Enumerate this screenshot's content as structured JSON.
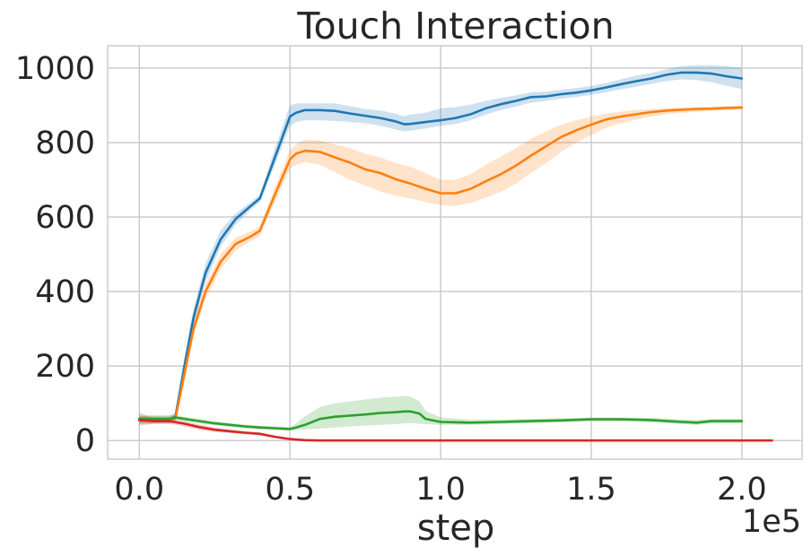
{
  "chart_data": {
    "type": "line",
    "title": "Touch Interaction",
    "xlabel": "step",
    "ylabel": "",
    "x_offset_label": "1e5",
    "xlim": [
      -0.105,
      2.2
    ],
    "ylim": [
      -50,
      1060
    ],
    "x_ticks": [
      0.0,
      0.5,
      1.0,
      1.5,
      2.0
    ],
    "x_tick_labels": [
      "0.0",
      "0.5",
      "1.0",
      "1.5",
      "2.0"
    ],
    "y_ticks": [
      0,
      200,
      400,
      600,
      800,
      1000
    ],
    "y_tick_labels": [
      "0",
      "200",
      "400",
      "600",
      "800",
      "1000"
    ],
    "grid": true,
    "series": [
      {
        "color": "#1f77b4",
        "x": [
          0,
          0.1,
          0.12,
          0.15,
          0.18,
          0.22,
          0.27,
          0.32,
          0.37,
          0.4,
          0.45,
          0.5,
          0.52,
          0.55,
          0.6,
          0.65,
          0.7,
          0.75,
          0.8,
          0.85,
          0.88,
          0.9,
          0.95,
          1.0,
          1.05,
          1.1,
          1.15,
          1.2,
          1.25,
          1.3,
          1.35,
          1.4,
          1.45,
          1.5,
          1.55,
          1.6,
          1.65,
          1.7,
          1.75,
          1.8,
          1.85,
          1.9,
          1.95,
          2.0
        ],
        "y": [
          55,
          55,
          65,
          200,
          330,
          450,
          540,
          595,
          630,
          650,
          760,
          870,
          880,
          887,
          887,
          885,
          878,
          872,
          866,
          857,
          849,
          850,
          855,
          860,
          866,
          876,
          892,
          903,
          912,
          922,
          924,
          930,
          934,
          940,
          948,
          957,
          965,
          972,
          982,
          988,
          988,
          985,
          978,
          972
        ],
        "lower": [
          45,
          45,
          55,
          180,
          310,
          425,
          520,
          580,
          620,
          640,
          740,
          845,
          855,
          860,
          860,
          858,
          855,
          852,
          845,
          835,
          830,
          832,
          838,
          845,
          850,
          860,
          875,
          887,
          897,
          907,
          912,
          918,
          922,
          928,
          935,
          943,
          950,
          958,
          965,
          970,
          968,
          962,
          952,
          944
        ],
        "upper": [
          65,
          65,
          75,
          225,
          355,
          475,
          565,
          610,
          640,
          660,
          785,
          900,
          905,
          905,
          905,
          905,
          898,
          890,
          886,
          878,
          870,
          875,
          880,
          892,
          895,
          902,
          912,
          920,
          927,
          935,
          937,
          942,
          946,
          952,
          960,
          970,
          980,
          987,
          997,
          1005,
          1008,
          1008,
          1005,
          1000
        ]
      },
      {
        "color": "#ff7f0e",
        "x": [
          0,
          0.1,
          0.12,
          0.15,
          0.18,
          0.22,
          0.27,
          0.32,
          0.35,
          0.37,
          0.4,
          0.45,
          0.5,
          0.52,
          0.55,
          0.6,
          0.65,
          0.7,
          0.75,
          0.8,
          0.85,
          0.9,
          0.95,
          1.0,
          1.05,
          1.1,
          1.15,
          1.2,
          1.25,
          1.3,
          1.35,
          1.4,
          1.45,
          1.5,
          1.55,
          1.6,
          1.65,
          1.7,
          1.75,
          1.8,
          1.85,
          1.9,
          1.95,
          2.0
        ],
        "y": [
          55,
          55,
          60,
          180,
          300,
          400,
          480,
          528,
          540,
          548,
          563,
          660,
          755,
          770,
          778,
          775,
          760,
          746,
          728,
          718,
          702,
          690,
          676,
          664,
          664,
          676,
          696,
          715,
          738,
          765,
          790,
          815,
          833,
          848,
          862,
          870,
          876,
          882,
          886,
          888,
          890,
          891,
          893,
          894
        ],
        "lower": [
          45,
          45,
          50,
          160,
          280,
          380,
          460,
          510,
          525,
          535,
          550,
          640,
          730,
          740,
          748,
          740,
          720,
          700,
          685,
          668,
          658,
          650,
          640,
          632,
          630,
          638,
          652,
          668,
          690,
          718,
          745,
          775,
          800,
          820,
          840,
          852,
          862,
          870,
          876,
          880,
          883,
          885,
          887,
          888
        ],
        "upper": [
          65,
          65,
          70,
          200,
          320,
          420,
          500,
          545,
          555,
          562,
          576,
          680,
          780,
          795,
          808,
          805,
          795,
          785,
          770,
          760,
          745,
          735,
          718,
          700,
          700,
          715,
          740,
          762,
          785,
          810,
          830,
          848,
          860,
          870,
          878,
          883,
          887,
          890,
          893,
          895,
          896,
          897,
          898,
          899
        ]
      },
      {
        "color": "#2ca02c",
        "x": [
          0,
          0.1,
          0.12,
          0.15,
          0.2,
          0.25,
          0.3,
          0.35,
          0.4,
          0.45,
          0.5,
          0.52,
          0.55,
          0.6,
          0.65,
          0.7,
          0.75,
          0.8,
          0.85,
          0.88,
          0.9,
          0.93,
          0.95,
          1.0,
          1.1,
          1.2,
          1.3,
          1.4,
          1.5,
          1.6,
          1.7,
          1.8,
          1.85,
          1.9,
          2.0
        ],
        "y": [
          58,
          58,
          62,
          58,
          52,
          46,
          42,
          38,
          35,
          33,
          31,
          35,
          42,
          58,
          64,
          67,
          70,
          74,
          76,
          78,
          78,
          72,
          58,
          50,
          48,
          50,
          52,
          54,
          57,
          57,
          55,
          50,
          48,
          52,
          52
        ],
        "lower": [
          48,
          48,
          55,
          52,
          46,
          41,
          37,
          33,
          30,
          28,
          26,
          28,
          30,
          32,
          35,
          38,
          40,
          42,
          44,
          46,
          47,
          45,
          44,
          42,
          42,
          44,
          47,
          49,
          52,
          52,
          49,
          44,
          42,
          46,
          46
        ],
        "upper": [
          68,
          68,
          70,
          64,
          58,
          52,
          47,
          43,
          40,
          38,
          36,
          45,
          65,
          90,
          100,
          105,
          110,
          115,
          118,
          120,
          118,
          105,
          80,
          62,
          56,
          57,
          58,
          60,
          62,
          62,
          61,
          57,
          55,
          58,
          58
        ]
      },
      {
        "color": "#d62728",
        "x": [
          0,
          0.05,
          0.1,
          0.15,
          0.2,
          0.25,
          0.3,
          0.35,
          0.4,
          0.45,
          0.5,
          0.55,
          0.6,
          0.8,
          1.0,
          1.5,
          2.0,
          2.1
        ],
        "y": [
          55,
          52,
          52,
          45,
          36,
          29,
          25,
          21,
          18,
          10,
          4,
          1,
          0,
          0,
          0,
          0,
          0,
          0
        ],
        "lower": [
          40,
          45,
          45,
          38,
          29,
          23,
          20,
          17,
          14,
          7,
          2,
          0,
          0,
          0,
          0,
          0,
          0,
          0
        ],
        "upper": [
          75,
          59,
          59,
          52,
          43,
          35,
          30,
          25,
          22,
          13,
          6,
          2,
          0.5,
          0.5,
          0.5,
          0.5,
          0.5,
          0.5
        ]
      }
    ]
  }
}
